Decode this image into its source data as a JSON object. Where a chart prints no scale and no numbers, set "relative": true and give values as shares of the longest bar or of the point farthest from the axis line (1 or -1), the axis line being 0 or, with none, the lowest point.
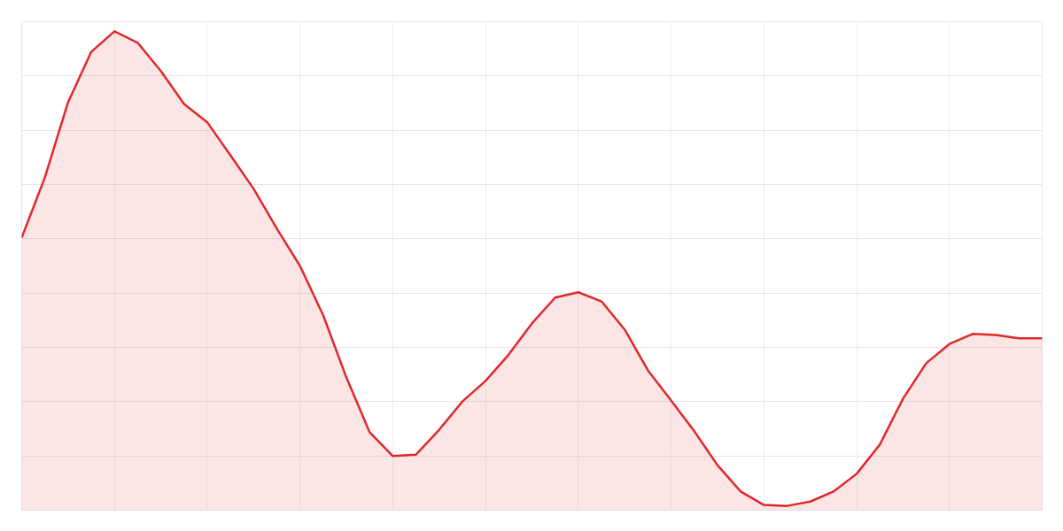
{
  "chart_data": {
    "type": "area",
    "relative": true,
    "grid": true,
    "categories": [
      null,
      null,
      null,
      null,
      null,
      null,
      null,
      null,
      null,
      null,
      null,
      null,
      null,
      null,
      null,
      null,
      null,
      null,
      null,
      null,
      null,
      null,
      null,
      null,
      null,
      null,
      null,
      null,
      null,
      null,
      null,
      null,
      null,
      null,
      null,
      null,
      null,
      null,
      null,
      null,
      null,
      null,
      null,
      null,
      null
    ],
    "series": [
      {
        "color": "#e0282c",
        "values": [
          0.569,
          0.695,
          0.852,
          0.957,
          1.0,
          0.976,
          0.917,
          0.848,
          0.81,
          0.741,
          0.671,
          0.588,
          0.51,
          0.407,
          0.277,
          0.163,
          0.113,
          0.116,
          0.168,
          0.227,
          0.27,
          0.325,
          0.39,
          0.444,
          0.455,
          0.436,
          0.377,
          0.292,
          0.229,
          0.165,
          0.094,
          0.039,
          0.011,
          0.009,
          0.018,
          0.039,
          0.076,
          0.137,
          0.233,
          0.307,
          0.347,
          0.368,
          0.366,
          0.359,
          0.359
        ]
      }
    ]
  }
}
